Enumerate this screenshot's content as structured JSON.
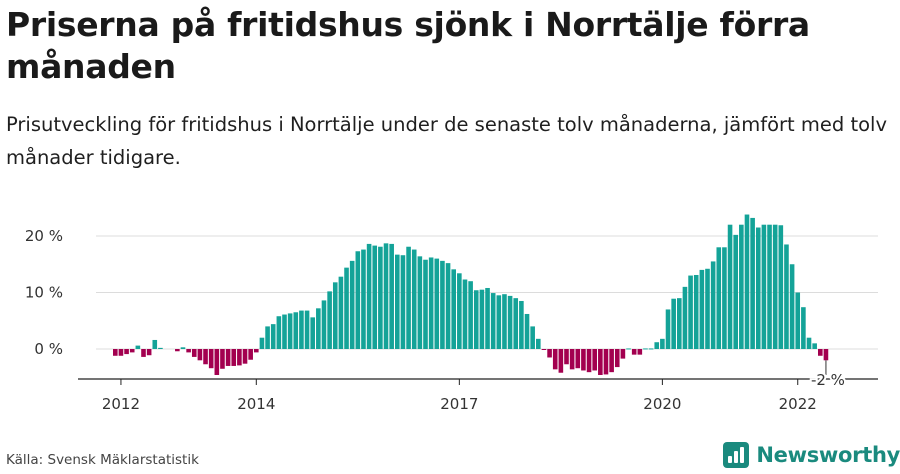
{
  "header": {
    "title": "Priserna på fritidshus sjönk i Norrtälje förra månaden",
    "subtitle": "Prisutveckling för fritidshus i Norrtälje under de senaste tolv månaderna, jämfört med tolv månader tidigare."
  },
  "footer": {
    "source": "Källa: Svensk Mäklarstatistik",
    "brand": "Newsworthy"
  },
  "colors": {
    "positive": "#14a398",
    "negative": "#a3004f",
    "grid": "#dcdcdc",
    "brand": "#1a8a7e"
  },
  "chart_data": {
    "type": "bar",
    "title": "Priserna på fritidshus sjönk i Norrtälje förra månaden",
    "subtitle": "Prisutveckling för fritidshus i Norrtälje under de senaste tolv månaderna, jämfört med tolv månader tidigare.",
    "xlabel": "",
    "ylabel": "",
    "unit": "%",
    "ylim": [
      -5,
      25
    ],
    "grid": true,
    "start": "2011-12",
    "frequency": "monthly",
    "yticks": [
      {
        "value": 0,
        "label": "0 %"
      },
      {
        "value": 10,
        "label": "10 %"
      },
      {
        "value": 20,
        "label": "20 %"
      }
    ],
    "xticks": [
      {
        "index": 1,
        "label": "2012"
      },
      {
        "index": 25,
        "label": "2014"
      },
      {
        "index": 61,
        "label": "2017"
      },
      {
        "index": 97,
        "label": "2020"
      },
      {
        "index": 121,
        "label": "2022"
      }
    ],
    "last_value_label": "-2 %",
    "values": [
      -1.2,
      -1.2,
      -0.9,
      -0.6,
      0.6,
      -1.4,
      -1.1,
      1.6,
      0.2,
      0.0,
      0.0,
      -0.4,
      0.3,
      -0.6,
      -1.4,
      -2.0,
      -2.7,
      -3.4,
      -4.6,
      -3.5,
      -3.0,
      -3.0,
      -2.9,
      -2.6,
      -1.9,
      -0.6,
      2.0,
      4.0,
      4.4,
      5.8,
      6.1,
      6.3,
      6.5,
      6.8,
      6.8,
      5.6,
      7.2,
      8.6,
      10.2,
      11.8,
      12.8,
      14.4,
      15.6,
      17.3,
      17.6,
      18.6,
      18.3,
      18.1,
      18.7,
      18.6,
      16.7,
      16.6,
      18.1,
      17.6,
      16.4,
      15.8,
      16.2,
      16.0,
      15.6,
      15.2,
      14.1,
      13.4,
      12.3,
      12.0,
      10.4,
      10.5,
      10.8,
      9.9,
      9.5,
      9.7,
      9.4,
      9.0,
      8.5,
      6.2,
      4.0,
      1.8,
      -0.1,
      -1.5,
      -3.6,
      -4.2,
      -2.7,
      -3.6,
      -3.4,
      -3.8,
      -4.1,
      -3.8,
      -4.6,
      -4.5,
      -4.1,
      -3.2,
      -1.7,
      0.1,
      -1.0,
      -1.0,
      0.1,
      0.1,
      1.2,
      1.8,
      7.0,
      8.9,
      9.0,
      11.0,
      13.0,
      13.1,
      14.0,
      14.2,
      15.5,
      18.0,
      18.0,
      22.0,
      20.2,
      22.0,
      23.8,
      23.2,
      21.5,
      22.0,
      22.0,
      22.0,
      21.9,
      18.5,
      15.0,
      10.0,
      7.4,
      2.0,
      1.0,
      -1.2,
      -2.0
    ]
  }
}
